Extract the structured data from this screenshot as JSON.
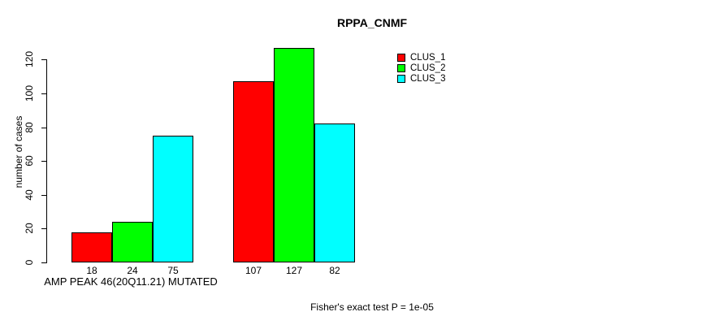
{
  "chart_data": {
    "type": "bar",
    "title": "RPPA_CNMF",
    "xlabel": "AMP PEAK 46(20Q11.21) MUTATED",
    "ylabel": "number of cases",
    "ylim": [
      0,
      130
    ],
    "yticks": [
      0,
      20,
      40,
      60,
      80,
      100,
      120
    ],
    "grid": false,
    "legend_position": "top-right",
    "num_groups": 2,
    "series": [
      {
        "name": "CLUS_1",
        "color": "#ff0000",
        "values": [
          18,
          107
        ]
      },
      {
        "name": "CLUS_2",
        "color": "#00ff00",
        "values": [
          24,
          127
        ]
      },
      {
        "name": "CLUS_3",
        "color": "#00ffff",
        "values": [
          75,
          82
        ]
      }
    ],
    "bar_value_labels": [
      [
        18,
        24,
        75
      ],
      [
        107,
        127,
        82
      ]
    ]
  },
  "legend": {
    "items": [
      {
        "label": "CLUS_1",
        "color": "#ff0000"
      },
      {
        "label": "CLUS_2",
        "color": "#00ff00"
      },
      {
        "label": "CLUS_3",
        "color": "#00ffff"
      }
    ]
  },
  "footnote": "Fisher's exact test P = 1e-05"
}
